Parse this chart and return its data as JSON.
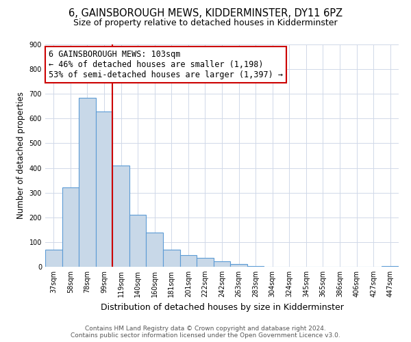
{
  "title": "6, GAINSBOROUGH MEWS, KIDDERMINSTER, DY11 6PZ",
  "subtitle": "Size of property relative to detached houses in Kidderminster",
  "xlabel": "Distribution of detached houses by size in Kidderminster",
  "ylabel": "Number of detached properties",
  "categories": [
    "37sqm",
    "58sqm",
    "78sqm",
    "99sqm",
    "119sqm",
    "140sqm",
    "160sqm",
    "181sqm",
    "201sqm",
    "222sqm",
    "242sqm",
    "263sqm",
    "283sqm",
    "304sqm",
    "324sqm",
    "345sqm",
    "365sqm",
    "386sqm",
    "406sqm",
    "427sqm",
    "447sqm"
  ],
  "values": [
    70,
    320,
    685,
    630,
    410,
    210,
    138,
    68,
    48,
    35,
    22,
    10,
    3,
    1,
    1,
    0,
    0,
    0,
    0,
    0,
    3
  ],
  "bar_color": "#c8d8e8",
  "bar_edge_color": "#5b9bd5",
  "redline_index": 3,
  "annotation_line1": "6 GAINSBOROUGH MEWS: 103sqm",
  "annotation_line2": "← 46% of detached houses are smaller (1,198)",
  "annotation_line3": "53% of semi-detached houses are larger (1,397) →",
  "box_facecolor": "#ffffff",
  "box_edgecolor": "#cc0000",
  "redline_color": "#cc0000",
  "grid_color": "#d0d8e8",
  "ylim": [
    0,
    900
  ],
  "yticks": [
    0,
    100,
    200,
    300,
    400,
    500,
    600,
    700,
    800,
    900
  ],
  "title_fontsize": 10.5,
  "subtitle_fontsize": 9,
  "ylabel_fontsize": 8.5,
  "xlabel_fontsize": 9,
  "tick_fontsize": 7,
  "annotation_fontsize": 8.5,
  "footer_fontsize": 6.5,
  "footer1": "Contains HM Land Registry data © Crown copyright and database right 2024.",
  "footer2": "Contains public sector information licensed under the Open Government Licence v3.0."
}
